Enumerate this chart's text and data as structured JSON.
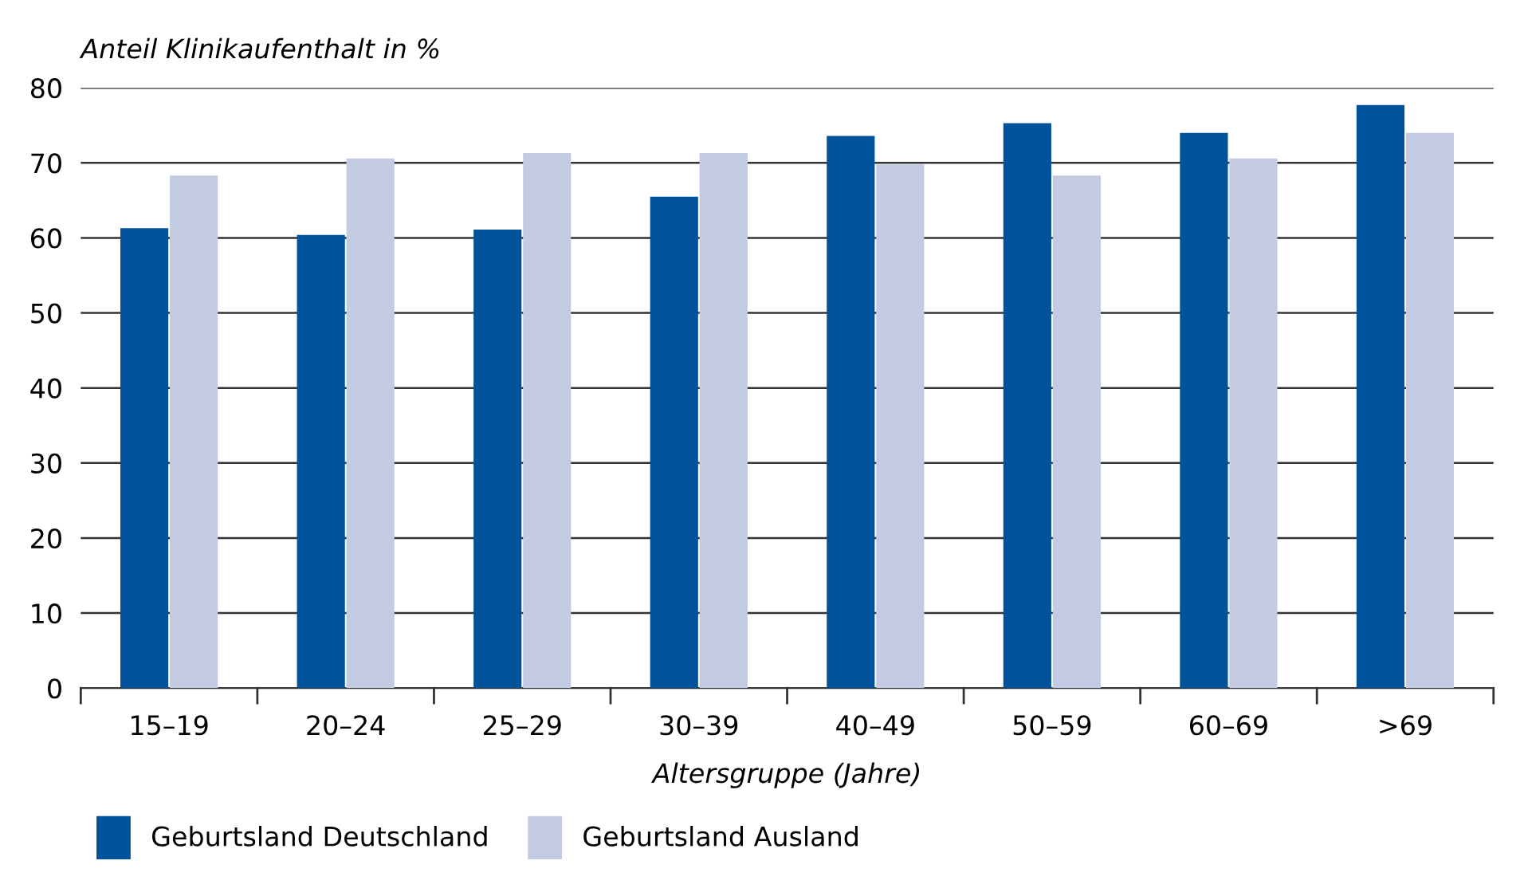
{
  "chart_data": {
    "type": "bar",
    "ylabel": "Anteil Klinikaufenthalt in %",
    "xlabel": "Altersgruppe (Jahre)",
    "categories": [
      "15–19",
      "20–24",
      "25–29",
      "30–39",
      "40–49",
      "50–59",
      "60–69",
      ">69"
    ],
    "series": [
      {
        "name": "Geburtsland Deutschland",
        "color": "#00529b",
        "values": [
          61.3,
          60.4,
          61.1,
          65.5,
          73.6,
          75.3,
          74.0,
          77.7
        ]
      },
      {
        "name": "Geburtsland Ausland",
        "color": "#c3cbe3",
        "values": [
          68.3,
          70.6,
          71.3,
          71.3,
          69.8,
          68.3,
          70.6,
          74.0
        ]
      }
    ],
    "ylim": [
      0,
      80
    ],
    "yticks": [
      0,
      10,
      20,
      30,
      40,
      50,
      60,
      70,
      80
    ],
    "grid": "y",
    "legend": "bottom left"
  }
}
